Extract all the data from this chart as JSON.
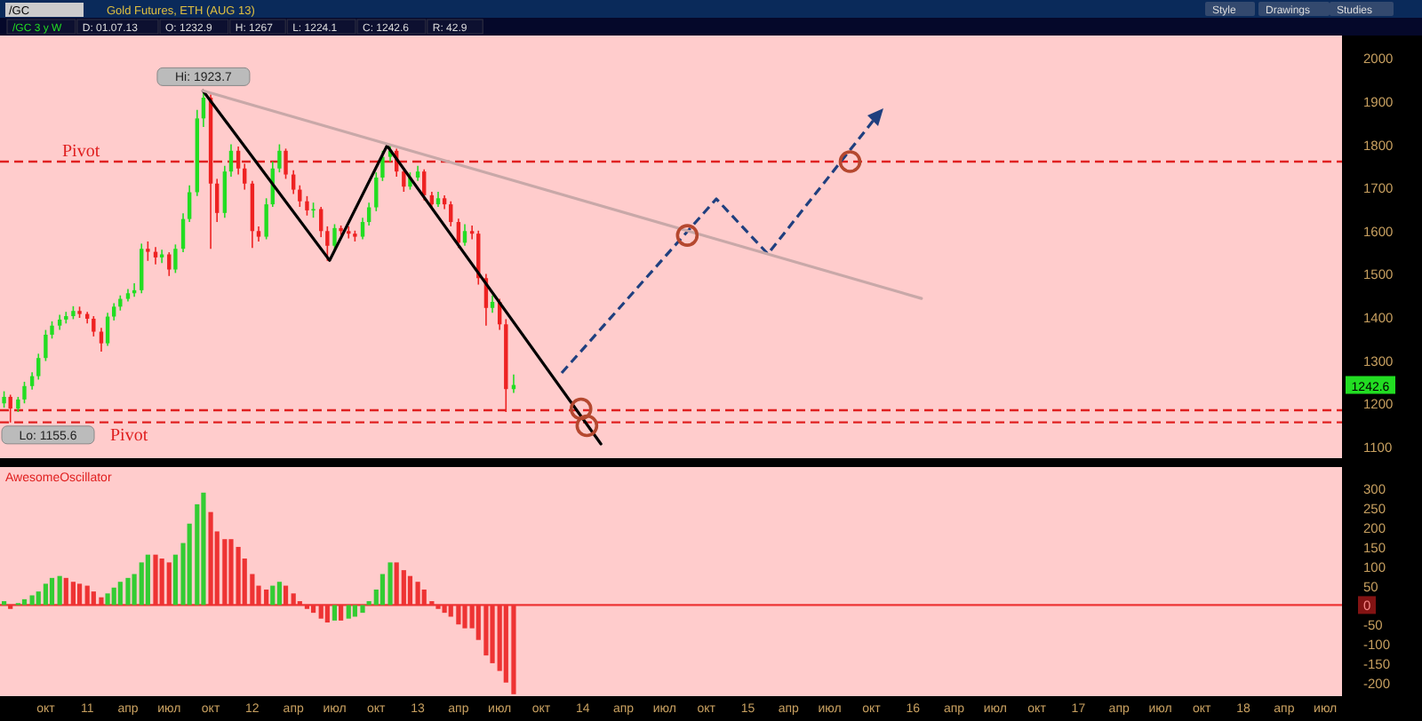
{
  "chart_data": [
    {
      "type": "candlestick",
      "title": "Gold Futures, ETH (AUG 13)",
      "annotations": [
        "/GC",
        "Style",
        "Drawings",
        "Studies",
        "/GC 3 y W",
        "D: 01.07.13",
        "O: 1232.9",
        "H: 1267",
        "L: 1224.1",
        "C: 1242.6",
        "R: 42.9",
        "1242.6",
        {
          "text": "Hi: 1923.7",
          "x": "2011-09-15",
          "y": 1923.7
        },
        {
          "text": "Lo: 1155.6",
          "x": "2010-07-15",
          "y": 1155.6
        }
      ],
      "x": [
        "2010-07-01",
        "2010-07-15",
        "2010-08-01",
        "2010-08-15",
        "2010-09-01",
        "2010-09-15",
        "2010-10-01",
        "2010-10-15",
        "2010-11-01",
        "2010-11-15",
        "2010-12-01",
        "2010-12-15",
        "2011-01-01",
        "2011-01-15",
        "2011-02-01",
        "2011-02-15",
        "2011-03-01",
        "2011-03-15",
        "2011-04-01",
        "2011-04-15",
        "2011-05-01",
        "2011-05-15",
        "2011-06-01",
        "2011-06-15",
        "2011-07-01",
        "2011-07-15",
        "2011-08-01",
        "2011-08-15",
        "2011-09-01",
        "2011-09-15",
        "2011-10-01",
        "2011-10-15",
        "2011-11-01",
        "2011-11-15",
        "2011-12-01",
        "2011-12-15",
        "2012-01-01",
        "2012-01-15",
        "2012-02-01",
        "2012-02-15",
        "2012-03-01",
        "2012-03-15",
        "2012-04-01",
        "2012-04-15",
        "2012-05-01",
        "2012-05-15",
        "2012-06-01",
        "2012-06-15",
        "2012-07-01",
        "2012-07-15",
        "2012-08-01",
        "2012-08-15",
        "2012-09-01",
        "2012-09-15",
        "2012-10-01",
        "2012-10-15",
        "2012-11-01",
        "2012-11-15",
        "2012-12-01",
        "2012-12-15",
        "2013-01-01",
        "2013-01-15",
        "2013-02-01",
        "2013-02-15",
        "2013-03-01",
        "2013-03-15",
        "2013-04-01",
        "2013-04-15",
        "2013-05-01",
        "2013-05-15",
        "2013-06-01",
        "2013-06-15",
        "2013-07-01",
        "2013-07-15",
        "2013-08-01"
      ],
      "ohlc": [
        [
          1200,
          1228,
          1190,
          1215
        ],
        [
          1215,
          1220,
          1155.6,
          1188
        ],
        [
          1188,
          1215,
          1180,
          1209
        ],
        [
          1209,
          1250,
          1200,
          1240
        ],
        [
          1240,
          1272,
          1232,
          1263
        ],
        [
          1263,
          1315,
          1255,
          1305
        ],
        [
          1305,
          1370,
          1298,
          1359
        ],
        [
          1359,
          1390,
          1350,
          1380
        ],
        [
          1380,
          1405,
          1370,
          1394
        ],
        [
          1394,
          1412,
          1385,
          1402
        ],
        [
          1402,
          1425,
          1395,
          1414
        ],
        [
          1414,
          1424,
          1398,
          1407
        ],
        [
          1407,
          1412,
          1385,
          1396
        ],
        [
          1396,
          1402,
          1355,
          1366
        ],
        [
          1366,
          1375,
          1320,
          1339
        ],
        [
          1339,
          1410,
          1333,
          1401
        ],
        [
          1401,
          1432,
          1392,
          1424
        ],
        [
          1424,
          1450,
          1415,
          1442
        ],
        [
          1442,
          1465,
          1436,
          1455
        ],
        [
          1455,
          1478,
          1447,
          1462
        ],
        [
          1462,
          1570,
          1455,
          1558
        ],
        [
          1558,
          1575,
          1530,
          1551
        ],
        [
          1551,
          1562,
          1522,
          1538
        ],
        [
          1538,
          1556,
          1525,
          1545
        ],
        [
          1545,
          1550,
          1495,
          1510
        ],
        [
          1510,
          1568,
          1502,
          1558
        ],
        [
          1558,
          1640,
          1550,
          1627
        ],
        [
          1627,
          1705,
          1620,
          1689
        ],
        [
          1689,
          1880,
          1680,
          1860
        ],
        [
          1860,
          1923.7,
          1840,
          1908
        ],
        [
          1908,
          1915,
          1558,
          1709
        ],
        [
          1709,
          1720,
          1620,
          1641
        ],
        [
          1641,
          1750,
          1630,
          1737
        ],
        [
          1737,
          1800,
          1725,
          1785
        ],
        [
          1785,
          1795,
          1730,
          1744
        ],
        [
          1744,
          1755,
          1695,
          1709
        ],
        [
          1709,
          1715,
          1560,
          1599
        ],
        [
          1599,
          1610,
          1575,
          1586
        ],
        [
          1586,
          1675,
          1580,
          1661
        ],
        [
          1661,
          1760,
          1655,
          1744
        ],
        [
          1744,
          1800,
          1735,
          1785
        ],
        [
          1785,
          1790,
          1720,
          1730
        ],
        [
          1730,
          1740,
          1685,
          1695
        ],
        [
          1695,
          1705,
          1655,
          1668
        ],
        [
          1668,
          1680,
          1635,
          1647
        ],
        [
          1647,
          1665,
          1630,
          1650
        ],
        [
          1650,
          1655,
          1585,
          1599
        ],
        [
          1599,
          1610,
          1530,
          1565
        ],
        [
          1565,
          1615,
          1555,
          1606
        ],
        [
          1606,
          1612,
          1590,
          1599
        ],
        [
          1599,
          1610,
          1582,
          1593
        ],
        [
          1593,
          1600,
          1575,
          1586
        ],
        [
          1586,
          1630,
          1580,
          1620
        ],
        [
          1620,
          1665,
          1612,
          1654
        ],
        [
          1654,
          1735,
          1645,
          1723
        ],
        [
          1723,
          1785,
          1715,
          1771
        ],
        [
          1771,
          1798,
          1760,
          1785
        ],
        [
          1785,
          1790,
          1725,
          1737
        ],
        [
          1737,
          1745,
          1690,
          1702
        ],
        [
          1702,
          1735,
          1695,
          1723
        ],
        [
          1723,
          1750,
          1715,
          1737
        ],
        [
          1737,
          1742,
          1670,
          1682
        ],
        [
          1682,
          1690,
          1650,
          1661
        ],
        [
          1661,
          1690,
          1655,
          1675
        ],
        [
          1675,
          1682,
          1650,
          1661
        ],
        [
          1661,
          1668,
          1610,
          1620
        ],
        [
          1620,
          1628,
          1560,
          1572
        ],
        [
          1572,
          1615,
          1565,
          1599
        ],
        [
          1599,
          1612,
          1580,
          1593
        ],
        [
          1593,
          1600,
          1475,
          1490
        ],
        [
          1490,
          1500,
          1380,
          1421
        ],
        [
          1421,
          1450,
          1410,
          1435
        ],
        [
          1435,
          1442,
          1370,
          1383
        ],
        [
          1383,
          1395,
          1180,
          1233
        ],
        [
          1232.9,
          1267,
          1224.1,
          1242.6
        ]
      ],
      "series": [
        {
          "type": "line",
          "color": "#000000",
          "line_style": "solid",
          "x": [
            "2011-09-14",
            "2012-06-20",
            "2012-10-25",
            "2014-02-10"
          ],
          "values": [
            1924,
            1531,
            1797,
            1106
          ]
        },
        {
          "type": "line",
          "color": "#c8a8a8",
          "line_style": "solid",
          "x": [
            "2011-09-14",
            "2016-01-20"
          ],
          "values": [
            1924,
            1443
          ]
        },
        {
          "type": "scatter",
          "marker": "circle",
          "color": "#b5482f",
          "x": [
            "2013-12-28",
            "2014-01-10",
            "2014-08-20",
            "2015-08-15"
          ],
          "values": [
            1187,
            1148,
            1589,
            1760
          ]
        }
      ],
      "ref_lines": [
        {
          "axis": "y",
          "value": 1760,
          "label": "Pivot",
          "color": "#e02020",
          "line_style": "dashed"
        },
        {
          "axis": "y",
          "value": 1184,
          "color": "#e02020",
          "line_style": "dashed"
        },
        {
          "axis": "y",
          "value": 1156,
          "label": "Pivot",
          "color": "#e02020",
          "line_style": "dashed"
        }
      ],
      "xlim": [
        "2010-06-22",
        "2018-08-07"
      ],
      "ylim": [
        1073,
        2052
      ],
      "yticks": [
        1100,
        1200,
        1300,
        1400,
        1500,
        1600,
        1700,
        1800,
        1900,
        2000
      ],
      "tick_labels": "y"
    },
    {
      "type": "bar",
      "title": "AwesomeOscillator",
      "x": [
        "2010-07-01",
        "2010-07-15",
        "2010-08-01",
        "2010-08-15",
        "2010-09-01",
        "2010-09-15",
        "2010-10-01",
        "2010-10-15",
        "2010-11-01",
        "2010-11-15",
        "2010-12-01",
        "2010-12-15",
        "2011-01-01",
        "2011-01-15",
        "2011-02-01",
        "2011-02-15",
        "2011-03-01",
        "2011-03-15",
        "2011-04-01",
        "2011-04-15",
        "2011-05-01",
        "2011-05-15",
        "2011-06-01",
        "2011-06-15",
        "2011-07-01",
        "2011-07-15",
        "2011-08-01",
        "2011-08-15",
        "2011-09-01",
        "2011-09-15",
        "2011-10-01",
        "2011-10-15",
        "2011-11-01",
        "2011-11-15",
        "2011-12-01",
        "2011-12-15",
        "2012-01-01",
        "2012-01-15",
        "2012-02-01",
        "2012-02-15",
        "2012-03-01",
        "2012-03-15",
        "2012-04-01",
        "2012-04-15",
        "2012-05-01",
        "2012-05-15",
        "2012-06-01",
        "2012-06-15",
        "2012-07-01",
        "2012-07-15",
        "2012-08-01",
        "2012-08-15",
        "2012-09-01",
        "2012-09-15",
        "2012-10-01",
        "2012-10-15",
        "2012-11-01",
        "2012-11-15",
        "2012-12-01",
        "2012-12-15",
        "2013-01-01",
        "2013-01-15",
        "2013-02-01",
        "2013-02-15",
        "2013-03-01",
        "2013-03-15",
        "2013-04-01",
        "2013-04-15",
        "2013-05-01",
        "2013-05-15",
        "2013-06-01",
        "2013-06-15",
        "2013-07-01",
        "2013-07-15",
        "2013-08-01"
      ],
      "values": [
        10,
        -10,
        5,
        15,
        25,
        35,
        55,
        70,
        75,
        70,
        60,
        55,
        50,
        35,
        20,
        30,
        45,
        60,
        70,
        80,
        110,
        130,
        130,
        120,
        110,
        130,
        160,
        210,
        260,
        290,
        240,
        190,
        170,
        170,
        150,
        120,
        80,
        50,
        40,
        50,
        60,
        50,
        30,
        10,
        -10,
        -20,
        -35,
        -45,
        -40,
        -40,
        -35,
        -30,
        -20,
        10,
        40,
        80,
        110,
        110,
        90,
        75,
        60,
        40,
        10,
        -10,
        -20,
        -30,
        -50,
        -60,
        -60,
        -90,
        -130,
        -150,
        -170,
        -200,
        -230
      ],
      "colors": [
        "#33cc33",
        "#ee3333",
        "#33cc33",
        "#33cc33",
        "#33cc33",
        "#33cc33",
        "#33cc33",
        "#33cc33",
        "#33cc33",
        "#ee3333",
        "#ee3333",
        "#ee3333",
        "#ee3333",
        "#ee3333",
        "#ee3333",
        "#33cc33",
        "#33cc33",
        "#33cc33",
        "#33cc33",
        "#33cc33",
        "#33cc33",
        "#33cc33",
        "#ee3333",
        "#ee3333",
        "#ee3333",
        "#33cc33",
        "#33cc33",
        "#33cc33",
        "#33cc33",
        "#33cc33",
        "#ee3333",
        "#ee3333",
        "#ee3333",
        "#ee3333",
        "#ee3333",
        "#ee3333",
        "#ee3333",
        "#ee3333",
        "#ee3333",
        "#33cc33",
        "#33cc33",
        "#ee3333",
        "#ee3333",
        "#ee3333",
        "#ee3333",
        "#ee3333",
        "#ee3333",
        "#ee3333",
        "#33cc33",
        "#ee3333",
        "#33cc33",
        "#33cc33",
        "#33cc33",
        "#33cc33",
        "#33cc33",
        "#33cc33",
        "#33cc33",
        "#ee3333",
        "#ee3333",
        "#ee3333",
        "#ee3333",
        "#ee3333",
        "#ee3333",
        "#ee3333",
        "#ee3333",
        "#ee3333",
        "#ee3333",
        "#ee3333",
        "#ee3333",
        "#ee3333",
        "#ee3333",
        "#ee3333",
        "#ee3333",
        "#ee3333",
        "#ee3333"
      ],
      "ref_lines": [
        {
          "axis": "y",
          "value": 0,
          "color": "#ee3333",
          "line_style": "solid"
        }
      ],
      "xlim": [
        "2010-06-22",
        "2018-08-07"
      ],
      "ylim": [
        -235,
        356
      ],
      "yticks": [
        -200,
        -150,
        -100,
        -50,
        0,
        50,
        100,
        150,
        200,
        250,
        300
      ],
      "xticks": [
        {
          "value": "2010-10",
          "label": "окт"
        },
        {
          "value": "2011",
          "label": "11"
        },
        {
          "value": "2011-04",
          "label": "апр"
        },
        {
          "value": "2011-07",
          "label": "июл"
        },
        {
          "value": "2011-10",
          "label": "окт"
        },
        {
          "value": "2012",
          "label": "12"
        },
        {
          "value": "2012-04",
          "label": "апр"
        },
        {
          "value": "2012-07",
          "label": "июл"
        },
        {
          "value": "2012-10",
          "label": "окт"
        },
        {
          "value": "2013",
          "label": "13"
        },
        {
          "value": "2013-04",
          "label": "апр"
        },
        {
          "value": "2013-07",
          "label": "июл"
        },
        {
          "value": "2013-10",
          "label": "окт"
        },
        {
          "value": "2014",
          "label": "14"
        },
        {
          "value": "2014-04",
          "label": "апр"
        },
        {
          "value": "2014-07",
          "label": "июл"
        },
        {
          "value": "2014-10",
          "label": "окт"
        },
        {
          "value": "2015",
          "label": "15"
        },
        {
          "value": "2015-04",
          "label": "апр"
        },
        {
          "value": "2015-07",
          "label": "июл"
        },
        {
          "value": "2015-10",
          "label": "окт"
        },
        {
          "value": "2016",
          "label": "16"
        },
        {
          "value": "2016-04",
          "label": "апр"
        },
        {
          "value": "2016-07",
          "label": "июл"
        },
        {
          "value": "2016-10",
          "label": "окт"
        },
        {
          "value": "2017",
          "label": "17"
        },
        {
          "value": "2017-04",
          "label": "апр"
        },
        {
          "value": "2017-07",
          "label": "июл"
        },
        {
          "value": "2017-10",
          "label": "окт"
        },
        {
          "value": "2018",
          "label": "18"
        },
        {
          "value": "2018-04",
          "label": "апр"
        },
        {
          "value": "2018-07",
          "label": "июл"
        }
      ]
    }
  ]
}
